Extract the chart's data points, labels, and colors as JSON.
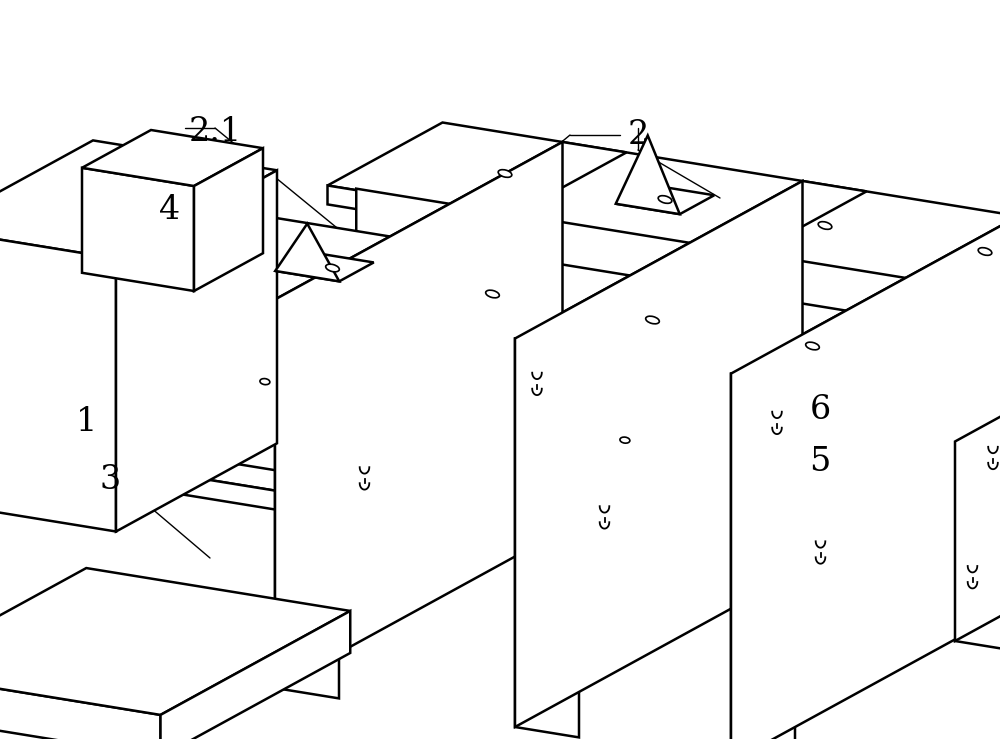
{
  "bg_color": "#ffffff",
  "line_color": "#000000",
  "line_width": 1.8,
  "thin_lw": 1.2,
  "fig_width": 10.0,
  "fig_height": 7.39,
  "label_fontsize": 24,
  "dpi": 100
}
